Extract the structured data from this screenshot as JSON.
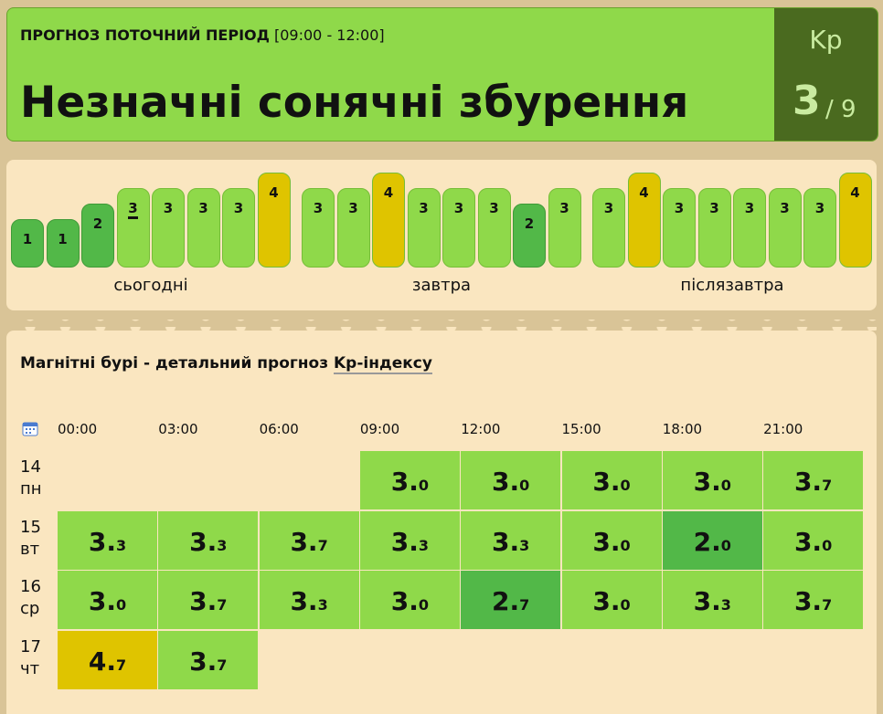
{
  "header": {
    "label": "ПРОГНОЗ ПОТОЧНИЙ ПЕРІОД",
    "period": "[09:00 - 12:00]",
    "title": "Незначні сонячні збурення",
    "kp_label": "Kp",
    "kp_value": "3",
    "kp_max": "/ 9"
  },
  "bars": [
    {
      "day": "сьогодні",
      "values": [
        "1",
        "1",
        "2",
        "3",
        "3",
        "3",
        "3",
        "4"
      ]
    },
    {
      "day": "завтра",
      "values": [
        "3",
        "3",
        "4",
        "3",
        "3",
        "3",
        "2",
        "3"
      ]
    },
    {
      "day": "післязавтра",
      "values": [
        "3",
        "4",
        "3",
        "3",
        "3",
        "3",
        "3",
        "4"
      ]
    }
  ],
  "table": {
    "title": "Магнітні бурі - детальний прогноз",
    "title_link": "Kp-індексу",
    "times": [
      "00:00",
      "03:00",
      "06:00",
      "09:00",
      "12:00",
      "15:00",
      "18:00",
      "21:00"
    ],
    "rows": [
      {
        "day": "14",
        "weekday": "пн",
        "values": [
          null,
          null,
          null,
          "3.0",
          "3.0",
          "3.0",
          "3.0",
          "3.7"
        ]
      },
      {
        "day": "15",
        "weekday": "вт",
        "values": [
          "3.3",
          "3.3",
          "3.7",
          "3.3",
          "3.3",
          "3.0",
          "2.0",
          "3.0"
        ]
      },
      {
        "day": "16",
        "weekday": "ср",
        "values": [
          "3.0",
          "3.7",
          "3.3",
          "3.0",
          "2.7",
          "3.0",
          "3.3",
          "3.7"
        ]
      },
      {
        "day": "17",
        "weekday": "чт",
        "values": [
          "4.7",
          "3.7",
          null,
          null,
          null,
          null,
          null,
          null
        ]
      }
    ]
  }
}
